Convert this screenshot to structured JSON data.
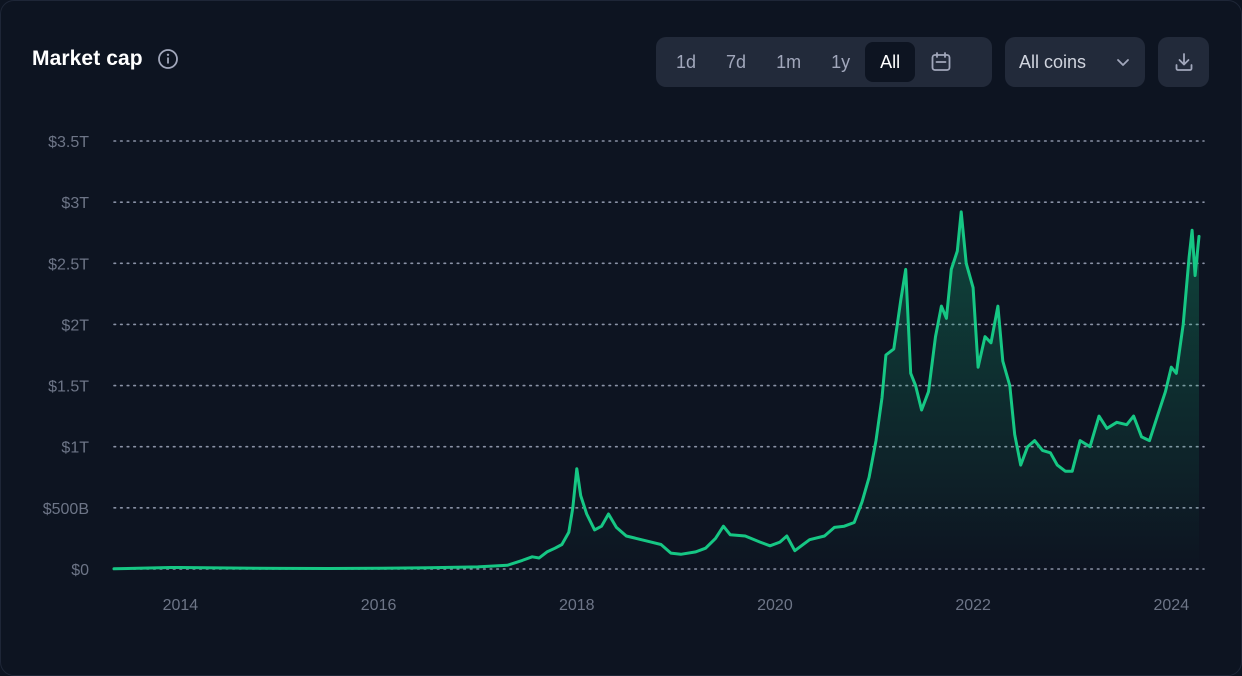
{
  "header": {
    "title": "Market cap",
    "info_icon": "info-icon"
  },
  "range_buttons": [
    {
      "label": "1d",
      "active": false
    },
    {
      "label": "7d",
      "active": false
    },
    {
      "label": "1m",
      "active": false
    },
    {
      "label": "1y",
      "active": false
    },
    {
      "label": "All",
      "active": true
    }
  ],
  "calendar_icon": "calendar-icon",
  "coin_filter": {
    "selected": "All coins",
    "icon": "chevron-down-icon"
  },
  "download_icon": "download-icon",
  "colors": {
    "line": "#16c784",
    "background": "#0d1421",
    "grid": "#8a92a6",
    "tick": "#6d7587"
  },
  "chart_data": {
    "type": "area",
    "title": "Market cap",
    "xlabel": "",
    "ylabel": "",
    "ylim": [
      0,
      3.5
    ],
    "y_ticks": [
      0,
      0.5,
      1,
      1.5,
      2,
      2.5,
      3,
      3.5
    ],
    "y_tick_labels": [
      "$0",
      "$500B",
      "$1T",
      "$1.5T",
      "$2T",
      "$2.5T",
      "$3T",
      "$3.5T"
    ],
    "xlim": [
      2013.33,
      2024.33
    ],
    "x_ticks": [
      2014,
      2016,
      2018,
      2020,
      2022,
      2024
    ],
    "x_tick_labels": [
      "2014",
      "2016",
      "2018",
      "2020",
      "2022",
      "2024"
    ],
    "grid": true,
    "legend": "none",
    "series": [
      {
        "unit": "trillion USD",
        "points": [
          [
            2013.33,
            0.0015
          ],
          [
            2013.9,
            0.012
          ],
          [
            2014.0,
            0.012
          ],
          [
            2014.5,
            0.008
          ],
          [
            2015.0,
            0.005
          ],
          [
            2015.5,
            0.004
          ],
          [
            2016.0,
            0.006
          ],
          [
            2016.5,
            0.01
          ],
          [
            2017.0,
            0.017
          ],
          [
            2017.3,
            0.03
          ],
          [
            2017.45,
            0.07
          ],
          [
            2017.55,
            0.1
          ],
          [
            2017.62,
            0.09
          ],
          [
            2017.7,
            0.14
          ],
          [
            2017.78,
            0.17
          ],
          [
            2017.85,
            0.2
          ],
          [
            2017.92,
            0.3
          ],
          [
            2017.96,
            0.5
          ],
          [
            2018.0,
            0.82
          ],
          [
            2018.04,
            0.6
          ],
          [
            2018.1,
            0.45
          ],
          [
            2018.18,
            0.32
          ],
          [
            2018.25,
            0.35
          ],
          [
            2018.32,
            0.45
          ],
          [
            2018.4,
            0.34
          ],
          [
            2018.5,
            0.27
          ],
          [
            2018.6,
            0.25
          ],
          [
            2018.75,
            0.22
          ],
          [
            2018.85,
            0.2
          ],
          [
            2018.95,
            0.13
          ],
          [
            2019.05,
            0.12
          ],
          [
            2019.2,
            0.14
          ],
          [
            2019.3,
            0.17
          ],
          [
            2019.4,
            0.25
          ],
          [
            2019.48,
            0.35
          ],
          [
            2019.55,
            0.28
          ],
          [
            2019.7,
            0.27
          ],
          [
            2019.85,
            0.22
          ],
          [
            2019.95,
            0.19
          ],
          [
            2020.05,
            0.22
          ],
          [
            2020.12,
            0.27
          ],
          [
            2020.2,
            0.15
          ],
          [
            2020.35,
            0.24
          ],
          [
            2020.5,
            0.27
          ],
          [
            2020.6,
            0.34
          ],
          [
            2020.7,
            0.35
          ],
          [
            2020.8,
            0.38
          ],
          [
            2020.88,
            0.55
          ],
          [
            2020.95,
            0.75
          ],
          [
            2021.02,
            1.05
          ],
          [
            2021.08,
            1.4
          ],
          [
            2021.12,
            1.75
          ],
          [
            2021.2,
            1.8
          ],
          [
            2021.27,
            2.2
          ],
          [
            2021.32,
            2.45
          ],
          [
            2021.37,
            1.6
          ],
          [
            2021.42,
            1.5
          ],
          [
            2021.48,
            1.3
          ],
          [
            2021.55,
            1.45
          ],
          [
            2021.62,
            1.9
          ],
          [
            2021.68,
            2.15
          ],
          [
            2021.73,
            2.05
          ],
          [
            2021.78,
            2.45
          ],
          [
            2021.84,
            2.6
          ],
          [
            2021.88,
            2.92
          ],
          [
            2021.93,
            2.5
          ],
          [
            2022.0,
            2.3
          ],
          [
            2022.05,
            1.65
          ],
          [
            2022.12,
            1.9
          ],
          [
            2022.18,
            1.85
          ],
          [
            2022.25,
            2.15
          ],
          [
            2022.3,
            1.7
          ],
          [
            2022.37,
            1.5
          ],
          [
            2022.42,
            1.1
          ],
          [
            2022.48,
            0.85
          ],
          [
            2022.55,
            1.0
          ],
          [
            2022.62,
            1.05
          ],
          [
            2022.7,
            0.97
          ],
          [
            2022.78,
            0.95
          ],
          [
            2022.85,
            0.85
          ],
          [
            2022.93,
            0.8
          ],
          [
            2023.0,
            0.8
          ],
          [
            2023.08,
            1.05
          ],
          [
            2023.18,
            1.0
          ],
          [
            2023.27,
            1.25
          ],
          [
            2023.35,
            1.15
          ],
          [
            2023.45,
            1.2
          ],
          [
            2023.55,
            1.18
          ],
          [
            2023.62,
            1.25
          ],
          [
            2023.7,
            1.08
          ],
          [
            2023.78,
            1.05
          ],
          [
            2023.86,
            1.25
          ],
          [
            2023.94,
            1.45
          ],
          [
            2024.0,
            1.65
          ],
          [
            2024.05,
            1.6
          ],
          [
            2024.12,
            2.0
          ],
          [
            2024.18,
            2.55
          ],
          [
            2024.21,
            2.77
          ],
          [
            2024.24,
            2.4
          ],
          [
            2024.28,
            2.72
          ]
        ]
      }
    ]
  }
}
